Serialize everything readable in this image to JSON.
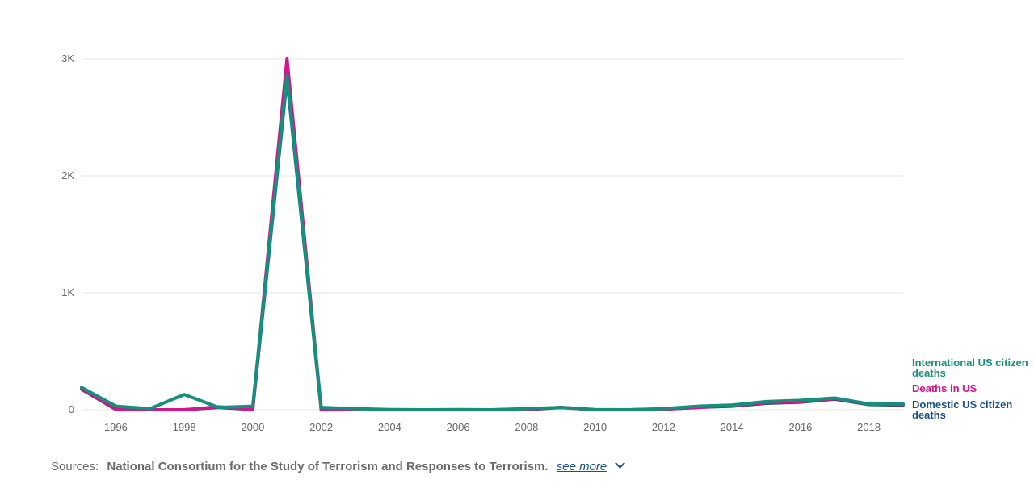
{
  "chart_data": {
    "type": "line",
    "title": "",
    "xlabel": "",
    "ylabel": "",
    "x": [
      1995,
      1996,
      1997,
      1998,
      1999,
      2000,
      2001,
      2002,
      2003,
      2004,
      2005,
      2006,
      2007,
      2008,
      2009,
      2010,
      2011,
      2012,
      2013,
      2014,
      2015,
      2016,
      2017,
      2018,
      2019
    ],
    "xlim": [
      1995,
      2019
    ],
    "ylim": [
      0,
      3000
    ],
    "x_ticks": [
      1996,
      1998,
      2000,
      2002,
      2004,
      2006,
      2008,
      2010,
      2012,
      2014,
      2016,
      2018
    ],
    "x_tick_labels": [
      "1996",
      "1998",
      "2000",
      "2002",
      "2004",
      "2006",
      "2008",
      "2010",
      "2012",
      "2014",
      "2016",
      "2018"
    ],
    "y_ticks": [
      0,
      1000,
      2000,
      3000
    ],
    "y_tick_labels": [
      "0",
      "1K",
      "2K",
      "3K"
    ],
    "grid": true,
    "series": [
      {
        "name": "Domestic US citizen deaths",
        "color": "#1a4f8b",
        "values": [
          175,
          2,
          0,
          0,
          20,
          2,
          2830,
          0,
          0,
          0,
          0,
          0,
          0,
          0,
          20,
          0,
          0,
          5,
          20,
          30,
          55,
          65,
          90,
          45,
          40
        ]
      },
      {
        "name": "Deaths in US",
        "color": "#d4148c",
        "values": [
          180,
          5,
          0,
          0,
          25,
          3,
          3000,
          5,
          0,
          0,
          0,
          0,
          0,
          5,
          20,
          0,
          0,
          5,
          20,
          35,
          60,
          70,
          95,
          50,
          45
        ]
      },
      {
        "name": "International US citizen deaths",
        "color": "#13917a",
        "values": [
          190,
          30,
          10,
          130,
          20,
          30,
          2860,
          20,
          10,
          2,
          0,
          2,
          0,
          10,
          20,
          2,
          0,
          10,
          30,
          40,
          70,
          80,
          100,
          50,
          50
        ]
      }
    ],
    "legend": [
      {
        "text": "International US citizen deaths",
        "color": "#13917a"
      },
      {
        "text": "Deaths in US",
        "color": "#d4148c"
      },
      {
        "text": "Domestic US citizen deaths",
        "color": "#1a4f8b"
      }
    ]
  },
  "footer": {
    "sources_label": "Sources:",
    "sources_text": "National Consortium for the Study of Terrorism and Responses to Terrorism.",
    "see_more": "see more"
  }
}
